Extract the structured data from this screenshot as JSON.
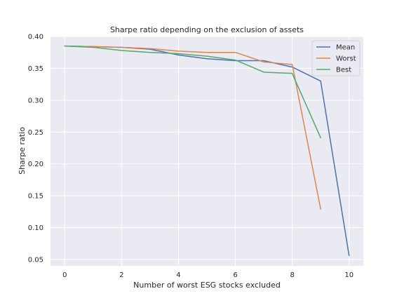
{
  "chart_data": {
    "type": "line",
    "title": "Sharpe ratio depending on the exclusion of assets",
    "xlabel": "Number of worst ESG stocks excluded",
    "ylabel": "Sharpe ratio",
    "xlim": [
      -0.5,
      10.5
    ],
    "ylim": [
      0.04,
      0.4
    ],
    "xticks": [
      0,
      2,
      4,
      6,
      8,
      10
    ],
    "yticks": [
      0.05,
      0.1,
      0.15,
      0.2,
      0.25,
      0.3,
      0.35,
      0.4
    ],
    "ytick_labels": [
      "0.05",
      "0.10",
      "0.15",
      "0.20",
      "0.25",
      "0.30",
      "0.35",
      "0.40"
    ],
    "grid": true,
    "legend_position": "top-right",
    "series": [
      {
        "name": "Mean",
        "color": "#4c72b0",
        "x": [
          0,
          1,
          2,
          3,
          4,
          5,
          6,
          7,
          8,
          9,
          10
        ],
        "y": [
          0.385,
          0.384,
          0.383,
          0.38,
          0.371,
          0.365,
          0.362,
          0.362,
          0.352,
          0.33,
          0.056
        ]
      },
      {
        "name": "Worst",
        "color": "#dd8452",
        "x": [
          0,
          1,
          2,
          3,
          4,
          5,
          6,
          7,
          8,
          9
        ],
        "y": [
          0.385,
          0.384,
          0.383,
          0.381,
          0.377,
          0.375,
          0.375,
          0.36,
          0.356,
          0.129
        ]
      },
      {
        "name": "Best",
        "color": "#55a868",
        "x": [
          0,
          1,
          2,
          3,
          4,
          5,
          6,
          7,
          8,
          9
        ],
        "y": [
          0.385,
          0.383,
          0.378,
          0.375,
          0.373,
          0.369,
          0.363,
          0.344,
          0.342,
          0.241
        ]
      }
    ]
  }
}
